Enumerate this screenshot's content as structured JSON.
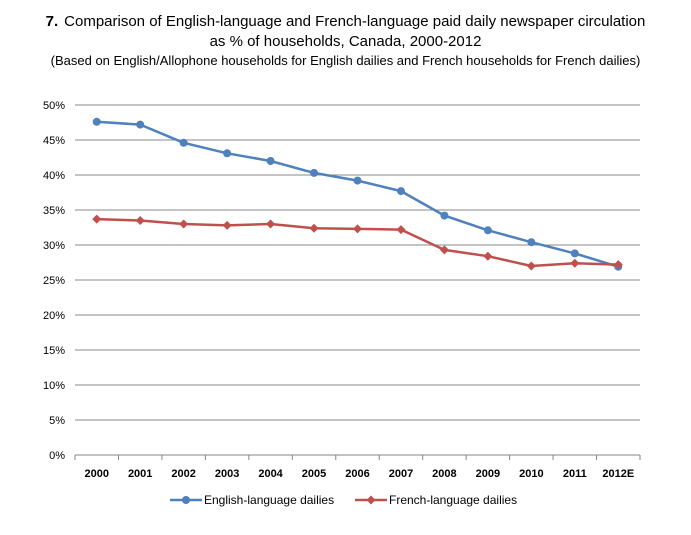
{
  "title": {
    "number": "7.",
    "line1": "Comparison of English-language and French-language paid daily newspaper circulation",
    "line2": "as % of households, Canada, 2000-2012",
    "line3": "(Based on English/Allophone households for English dailies and French households for French dailies)"
  },
  "chart_data": {
    "type": "line",
    "title": "Comparison of English-language and French-language paid daily newspaper circulation as % of households, Canada, 2000-2012",
    "subtitle": "(Based on English/Allophone households for English dailies and French households for French dailies)",
    "xlabel": "",
    "ylabel": "",
    "categories": [
      "2000",
      "2001",
      "2002",
      "2003",
      "2004",
      "2005",
      "2006",
      "2007",
      "2008",
      "2009",
      "2010",
      "2011",
      "2012E"
    ],
    "ylim": [
      0,
      50
    ],
    "yticks": [
      0,
      5,
      10,
      15,
      20,
      25,
      30,
      35,
      40,
      45,
      50
    ],
    "ytick_labels": [
      "0%",
      "5%",
      "10%",
      "15%",
      "20%",
      "25%",
      "30%",
      "35%",
      "40%",
      "45%",
      "50%"
    ],
    "grid": true,
    "legend": "bottom",
    "series": [
      {
        "name": "English-language dailies",
        "color": "#4f81bd",
        "marker": "circle",
        "values": [
          47.6,
          47.2,
          44.6,
          43.1,
          42.0,
          40.3,
          39.2,
          37.7,
          34.2,
          32.1,
          30.4,
          28.8,
          26.9
        ]
      },
      {
        "name": "French-language dailies",
        "color": "#c0504d",
        "marker": "diamond",
        "values": [
          33.7,
          33.5,
          33.0,
          32.8,
          33.0,
          32.4,
          32.3,
          32.2,
          29.3,
          28.4,
          27.0,
          27.4,
          27.2
        ]
      }
    ]
  }
}
